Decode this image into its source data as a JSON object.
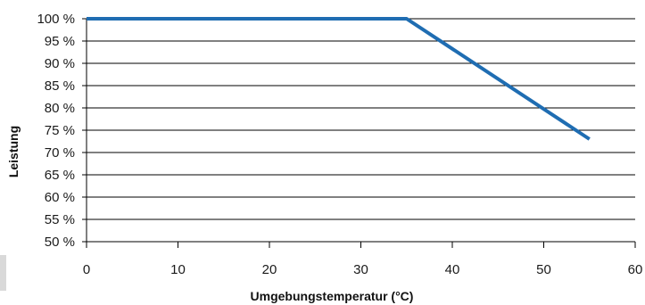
{
  "chart_data": {
    "type": "line",
    "title": "",
    "xlabel": "Umgebungstemperatur (°C)",
    "ylabel": "Leistung",
    "xlim": [
      0,
      60
    ],
    "ylim": [
      50,
      100
    ],
    "xticks": [
      0,
      10,
      20,
      30,
      40,
      50,
      60
    ],
    "yticks": [
      50,
      55,
      60,
      65,
      70,
      75,
      80,
      85,
      90,
      95,
      100
    ],
    "ytick_labels": [
      "50 %",
      "55 %",
      "60 %",
      "65 %",
      "70 %",
      "75 %",
      "80 %",
      "85 %",
      "90 %",
      "95 %",
      "100 %"
    ],
    "grid": "horizontal",
    "legend": "none",
    "series": [
      {
        "color": "#1f6db2",
        "x": [
          0,
          35,
          55
        ],
        "y": [
          100,
          100,
          73
        ]
      }
    ]
  }
}
